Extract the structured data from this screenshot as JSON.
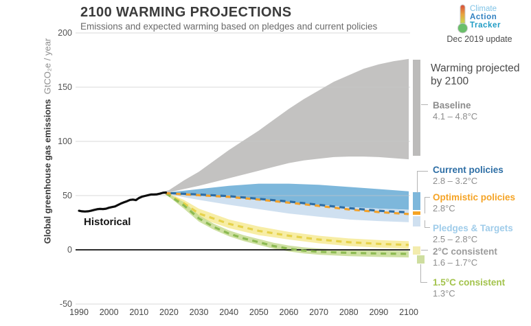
{
  "header": {
    "title": "2100 WARMING PROJECTIONS",
    "subtitle": "Emissions and expected warming based on pledges and current policies"
  },
  "logo": {
    "line1": "Climate",
    "line2": "Action",
    "line3": "Tracker",
    "line1_color": "#7fc3e6",
    "line2_color": "#2e7fc0",
    "line3_color": "#1d9bc4",
    "update": "Dec 2019 update"
  },
  "y_axis": {
    "label": "Global greenhouse gas emissions",
    "unit": "GtCO₂e / year",
    "ticks": [
      200,
      150,
      100,
      50,
      0,
      -50
    ]
  },
  "x_axis": {
    "ticks": [
      1990,
      2000,
      2010,
      2020,
      2030,
      2040,
      2050,
      2060,
      2070,
      2080,
      2090,
      2100
    ]
  },
  "annotations": {
    "historical": "Historical",
    "warming_line1": "Warming projected",
    "warming_line2": "by 2100"
  },
  "legend": [
    {
      "id": "baseline",
      "label": "Baseline",
      "range": "4.1 – 4.8°C",
      "label_color": "#8c8c8c",
      "swatch_color": "#bcbbba"
    },
    {
      "id": "current",
      "label": "Current policies",
      "range": "2.8 – 3.2°C",
      "label_color": "#2d6ea5",
      "swatch_color": "#7db7db"
    },
    {
      "id": "optimistic",
      "label": "Optimistic policies",
      "range": "2.8°C",
      "label_color": "#f5a324",
      "swatch_color": "#f5a324"
    },
    {
      "id": "pledges",
      "label": "Pledges & Targets",
      "range": "2.5 – 2.8°C",
      "label_color": "#9fccea",
      "swatch_color": "#cfe0f0"
    },
    {
      "id": "twodeg",
      "label": "2°C consistent",
      "range": "1.6 – 1.7°C",
      "label_color": "#9b9b9b",
      "swatch_color": "#f3ecae"
    },
    {
      "id": "onefive",
      "label": "1.5°C consistent",
      "range": "1.3°C",
      "label_color": "#a3c34c",
      "swatch_color": "#cede9f"
    }
  ],
  "chart_data": {
    "type": "area",
    "title": "2100 WARMING PROJECTIONS",
    "ylabel": "Global greenhouse gas emissions GtCO₂e / year",
    "ylim": [
      -50,
      200
    ],
    "xlim": [
      1990,
      2100
    ],
    "grid": true,
    "historical": {
      "name": "Historical",
      "color": "#0d0d0d",
      "x": [
        1990,
        1991,
        1992,
        1993,
        1994,
        1995,
        1996,
        1997,
        1998,
        1999,
        2000,
        2001,
        2002,
        2003,
        2004,
        2005,
        2006,
        2007,
        2008,
        2009,
        2010,
        2011,
        2012,
        2013,
        2014,
        2015,
        2016,
        2017,
        2018,
        2019
      ],
      "y": [
        36,
        35.5,
        35.3,
        35.5,
        36,
        36.8,
        37.4,
        37.7,
        37.6,
        37.9,
        38.8,
        39.4,
        40,
        41.3,
        42.7,
        43.8,
        44.8,
        46,
        46.3,
        45.8,
        47.8,
        49,
        49.7,
        50.4,
        51,
        51,
        51.2,
        51.8,
        52.6,
        52.8
      ]
    },
    "bands": [
      {
        "id": "baseline",
        "name": "Baseline",
        "warming_2100": "4.1 – 4.8°C",
        "color": "#c3c2c1",
        "opacity": 1,
        "x": [
          2015,
          2020,
          2025,
          2030,
          2035,
          2040,
          2045,
          2050,
          2055,
          2060,
          2065,
          2070,
          2075,
          2080,
          2085,
          2090,
          2095,
          2100
        ],
        "upper": [
          51.5,
          55,
          64,
          72,
          82,
          92,
          101,
          110,
          120,
          130,
          139,
          147,
          155,
          161,
          167,
          171,
          174,
          176
        ],
        "lower": [
          51.5,
          53,
          56,
          59,
          62.5,
          66,
          69.5,
          73,
          76.5,
          80,
          82.5,
          84,
          85.5,
          86,
          86,
          85.5,
          84.5,
          83.5
        ]
      },
      {
        "id": "current-policies",
        "name": "Current policies",
        "warming_2100": "2.8 – 3.2°C",
        "color": "#7db7db",
        "opacity": 1,
        "x": [
          2019,
          2020,
          2025,
          2030,
          2040,
          2050,
          2060,
          2070,
          2080,
          2090,
          2100
        ],
        "upper": [
          52.8,
          53,
          54.5,
          56,
          59,
          61,
          61,
          60,
          58,
          56,
          54
        ],
        "lower": [
          52.3,
          52,
          50.7,
          50,
          48.5,
          46.5,
          44,
          41.5,
          39.5,
          38,
          37
        ]
      },
      {
        "id": "pledges-targets",
        "name": "Pledges & Targets",
        "warming_2100": "2.5 – 2.8°C",
        "color": "#cfe0f0",
        "opacity": 1,
        "x": [
          2019,
          2020,
          2025,
          2030,
          2040,
          2050,
          2060,
          2070,
          2080,
          2090,
          2100
        ],
        "upper": [
          52.3,
          52,
          50.7,
          50,
          48.5,
          46.5,
          44,
          41.5,
          39.5,
          38,
          37
        ],
        "lower": [
          52,
          51.5,
          48.5,
          46,
          41.5,
          37.5,
          33.5,
          30.5,
          28,
          26.5,
          25.5
        ]
      },
      {
        "id": "two-deg-consistent",
        "name": "2°C consistent",
        "warming_2100": "1.6 – 1.7°C",
        "color": "#f5e98f",
        "opacity": 0.8,
        "x": [
          2019,
          2025,
          2030,
          2040,
          2050,
          2060,
          2070,
          2080,
          2090,
          2100
        ],
        "upper": [
          53,
          46,
          38,
          28,
          21.5,
          16.5,
          13,
          10.5,
          9,
          8
        ],
        "lower": [
          51.5,
          39.5,
          29.5,
          20,
          13.5,
          9.5,
          6,
          3.5,
          2,
          1
        ]
      },
      {
        "id": "one-five-deg-consistent",
        "name": "1.5°C consistent",
        "warming_2100": "1.3°C",
        "color": "#c6da92",
        "opacity": 0.85,
        "x": [
          2019,
          2025,
          2030,
          2035,
          2040,
          2045,
          2050,
          2055,
          2060,
          2065,
          2070,
          2080,
          2090,
          2100
        ],
        "upper": [
          52.7,
          44,
          32,
          24,
          18,
          13.5,
          10,
          6.5,
          4,
          2.3,
          1.2,
          0,
          -0.6,
          -1
        ],
        "lower": [
          51.2,
          38,
          26,
          18.5,
          12.5,
          8,
          4.5,
          1,
          -1.5,
          -3.3,
          -4.5,
          -5.8,
          -6.6,
          -7
        ]
      }
    ],
    "dashed_lines": [
      {
        "id": "two-deg-line",
        "name": "2°C consistent median",
        "color": "#e6d24a",
        "dash_offset": 0,
        "x": [
          2019,
          2025,
          2030,
          2040,
          2050,
          2060,
          2070,
          2080,
          2090,
          2100
        ],
        "y": [
          52.2,
          43,
          33.5,
          24,
          17.5,
          13,
          9.5,
          7,
          5.5,
          4.5
        ]
      },
      {
        "id": "one-five-deg-line",
        "name": "1.5°C consistent median",
        "color": "#8cba52",
        "dash_offset": 0,
        "x": [
          2019,
          2025,
          2030,
          2035,
          2040,
          2045,
          2050,
          2055,
          2060,
          2065,
          2070,
          2080,
          2090,
          2100
        ],
        "y": [
          52,
          41,
          29,
          21,
          15,
          10.5,
          7,
          3.5,
          1,
          -0.7,
          -1.8,
          -2.8,
          -3.4,
          -3.8
        ]
      },
      {
        "id": "optimistic-policies-line",
        "name": "Optimistic policies",
        "color": "#f2a22c",
        "dash_offset": 0,
        "x": [
          2019,
          2030,
          2040,
          2050,
          2060,
          2070,
          2080,
          2090,
          2100
        ],
        "y": [
          52.2,
          50.4,
          48.8,
          46.3,
          43.5,
          40.5,
          37.3,
          34.8,
          33
        ]
      },
      {
        "id": "current-policies-line",
        "name": "Current policies median",
        "color": "#2e6da4",
        "dash_offset": 7.5,
        "x": [
          2019,
          2030,
          2040,
          2050,
          2060,
          2070,
          2080,
          2090,
          2100
        ],
        "y": [
          52.5,
          51,
          49.5,
          47,
          44.5,
          41.5,
          38.5,
          36,
          34.5
        ]
      }
    ]
  }
}
